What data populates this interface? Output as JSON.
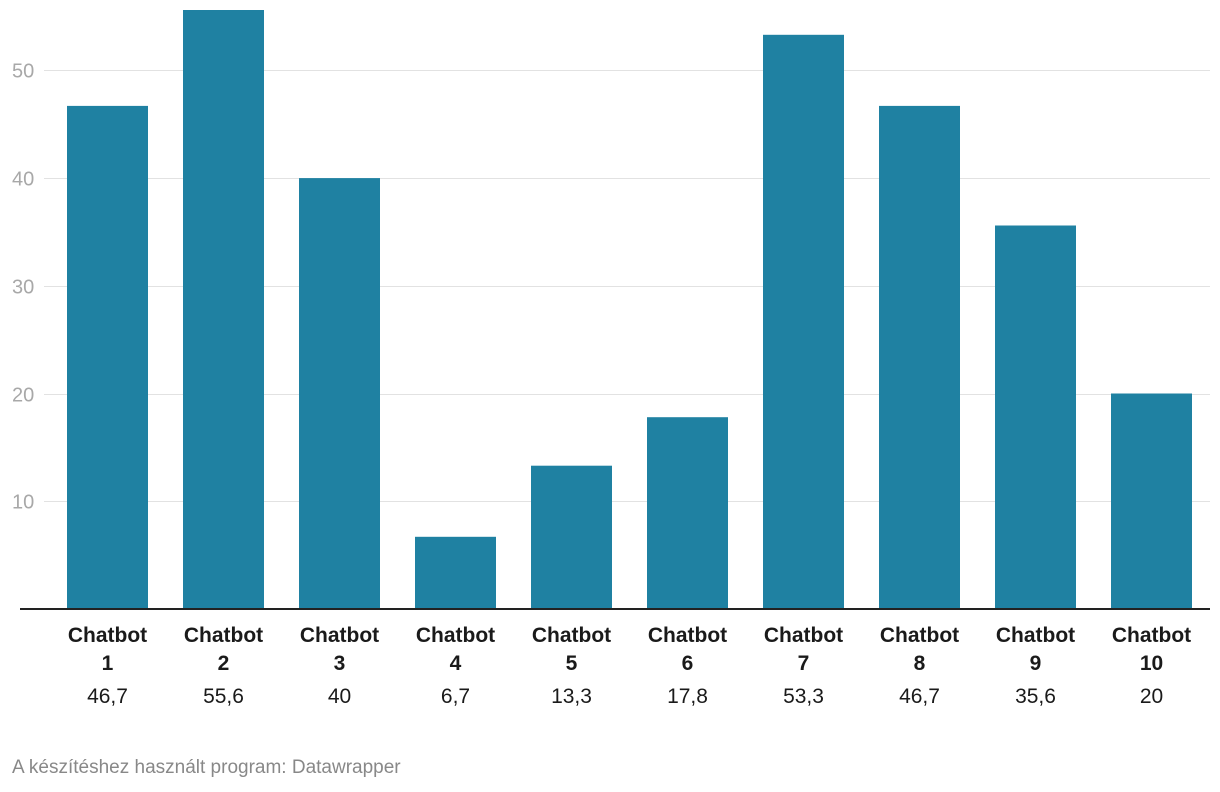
{
  "chart_data": {
    "type": "bar",
    "categories": [
      [
        "Chatbot",
        "1"
      ],
      [
        "Chatbot",
        "2"
      ],
      [
        "Chatbot",
        "3"
      ],
      [
        "Chatbot",
        "4"
      ],
      [
        "Chatbot",
        "5"
      ],
      [
        "Chatbot",
        "6"
      ],
      [
        "Chatbot",
        "7"
      ],
      [
        "Chatbot",
        "8"
      ],
      [
        "Chatbot",
        "9"
      ],
      [
        "Chatbot",
        "10"
      ]
    ],
    "values": [
      46.7,
      55.6,
      40,
      6.7,
      13.3,
      17.8,
      53.3,
      46.7,
      35.6,
      20
    ],
    "value_labels": [
      "46,7",
      "55,6",
      "40",
      "6,7",
      "13,3",
      "17,8",
      "53,3",
      "46,7",
      "35,6",
      "20"
    ],
    "yticks": [
      10,
      20,
      30,
      40,
      50
    ],
    "ylim": [
      0,
      55.6
    ],
    "grid": true,
    "bar_color": "#1f81a2"
  },
  "footer": {
    "credit": "A készítéshez használt program: Datawrapper"
  }
}
